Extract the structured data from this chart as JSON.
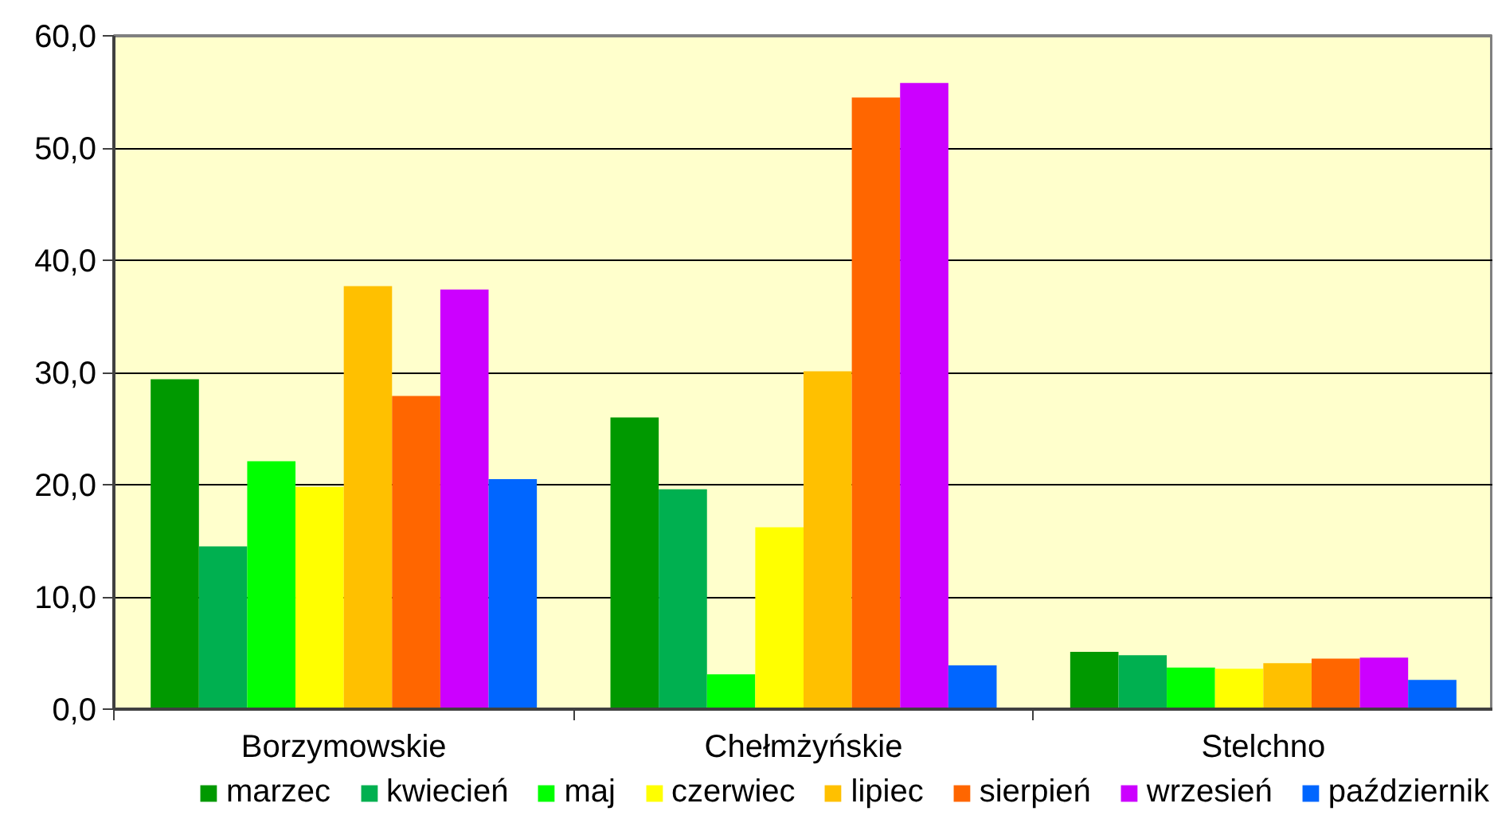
{
  "chart_data": {
    "type": "bar",
    "categories": [
      "Borzymowskie",
      "Chełmżyńskie",
      "Stelchno"
    ],
    "series": [
      {
        "name": "marzec",
        "color": "#009900",
        "values": [
          29.4,
          26.0,
          5.1
        ]
      },
      {
        "name": "kwiecień",
        "color": "#00b050",
        "values": [
          14.5,
          19.6,
          4.8
        ]
      },
      {
        "name": "maj",
        "color": "#00ff00",
        "values": [
          22.1,
          3.1,
          3.7
        ]
      },
      {
        "name": "czerwiec",
        "color": "#ffff00",
        "values": [
          19.8,
          16.2,
          3.6
        ]
      },
      {
        "name": "lipiec",
        "color": "#ffc000",
        "values": [
          37.7,
          30.1,
          4.1
        ]
      },
      {
        "name": "sierpień",
        "color": "#ff6600",
        "values": [
          27.9,
          54.5,
          4.5
        ]
      },
      {
        "name": "wrzesień",
        "color": "#cc00ff",
        "values": [
          37.4,
          55.8,
          4.6
        ]
      },
      {
        "name": "październik",
        "color": "#0066ff",
        "values": [
          20.5,
          3.9,
          2.6
        ]
      }
    ],
    "ylim": [
      0,
      60
    ],
    "yticks": [
      {
        "value": 0,
        "label": "0,0"
      },
      {
        "value": 10,
        "label": "10,0"
      },
      {
        "value": 20,
        "label": "20,0"
      },
      {
        "value": 30,
        "label": "30,0"
      },
      {
        "value": 40,
        "label": "40,0"
      },
      {
        "value": 50,
        "label": "50,0"
      },
      {
        "value": 60,
        "label": "60,0"
      }
    ],
    "grid": "y",
    "legend": "bottom"
  }
}
